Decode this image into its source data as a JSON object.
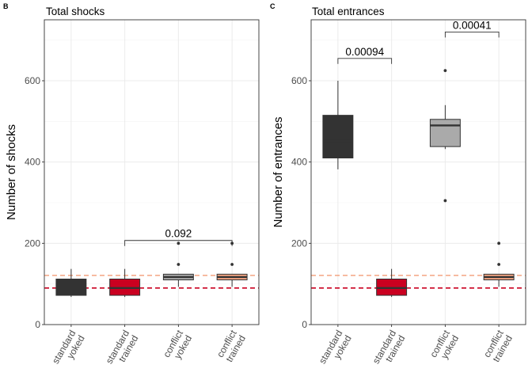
{
  "chart_data": [
    {
      "type": "box",
      "tag": "B",
      "title": "Total shocks",
      "ylabel": "Number of shocks",
      "ylim": [
        0,
        750
      ],
      "yticks": [
        0,
        200,
        400,
        600
      ],
      "categories": [
        {
          "line1": "standard",
          "line2": "yoked"
        },
        {
          "line1": "standard",
          "line2": "trained"
        },
        {
          "line1": "conflict",
          "line2": "yoked"
        },
        {
          "line1": "conflict",
          "line2": "trained"
        }
      ],
      "boxes": [
        {
          "color": "#333333",
          "lower_whisker": 68,
          "q1": 72,
          "median": 90,
          "q3": 112,
          "upper_whisker": 137,
          "outliers": []
        },
        {
          "color": "#ca0020",
          "lower_whisker": 68,
          "q1": 72,
          "median": 90,
          "q3": 112,
          "upper_whisker": 137,
          "outliers": []
        },
        {
          "color": "#aaaaaa",
          "lower_whisker": 93,
          "q1": 110,
          "median": 117,
          "q3": 124,
          "upper_whisker": 124,
          "outliers": [
            148,
            200
          ]
        },
        {
          "color": "#f4a582",
          "lower_whisker": 93,
          "q1": 110,
          "median": 117,
          "q3": 124,
          "upper_whisker": 124,
          "outliers": [
            148,
            200
          ]
        }
      ],
      "reference_lines": [
        {
          "value": 121,
          "color": "#f4a582"
        },
        {
          "value": 90,
          "color": "#ca0020"
        }
      ],
      "comparisons": [
        {
          "from": 1,
          "to": 3,
          "y": 207,
          "label": "0.092"
        }
      ]
    },
    {
      "type": "box",
      "tag": "C",
      "title": "Total entrances",
      "ylabel": "Number of entrances",
      "ylim": [
        0,
        750
      ],
      "yticks": [
        0,
        200,
        400,
        600
      ],
      "categories": [
        {
          "line1": "standard",
          "line2": "yoked"
        },
        {
          "line1": "standard",
          "line2": "trained"
        },
        {
          "line1": "conflict",
          "line2": "yoked"
        },
        {
          "line1": "conflict",
          "line2": "trained"
        }
      ],
      "boxes": [
        {
          "color": "#333333",
          "lower_whisker": 382,
          "q1": 410,
          "median": 452,
          "q3": 515,
          "upper_whisker": 600,
          "outliers": []
        },
        {
          "color": "#ca0020",
          "lower_whisker": 68,
          "q1": 72,
          "median": 90,
          "q3": 112,
          "upper_whisker": 137,
          "outliers": []
        },
        {
          "color": "#aaaaaa",
          "lower_whisker": 432,
          "q1": 438,
          "median": 490,
          "q3": 505,
          "upper_whisker": 540,
          "outliers": [
            305,
            625
          ]
        },
        {
          "color": "#f4a582",
          "lower_whisker": 93,
          "q1": 110,
          "median": 117,
          "q3": 124,
          "upper_whisker": 124,
          "outliers": [
            148,
            200
          ]
        }
      ],
      "reference_lines": [
        {
          "value": 121,
          "color": "#f4a582"
        },
        {
          "value": 90,
          "color": "#ca0020"
        }
      ],
      "comparisons": [
        {
          "from": 0,
          "to": 1,
          "y": 655,
          "label": "0.00094"
        },
        {
          "from": 2,
          "to": 3,
          "y": 720,
          "label": "0.00041"
        }
      ]
    }
  ]
}
